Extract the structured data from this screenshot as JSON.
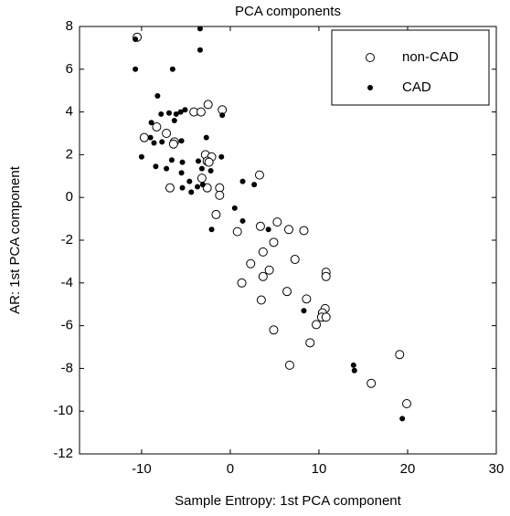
{
  "chart_data": {
    "type": "scatter",
    "title": "PCA components",
    "x_label": "Sample Entropy: 1st PCA component",
    "y_label": "AR: 1st PCA component",
    "xlim": [
      -17,
      30
    ],
    "ylim": [
      -12,
      8
    ],
    "xticks": [
      -10,
      0,
      10,
      20,
      30
    ],
    "yticks": [
      -12,
      -10,
      -8,
      -6,
      -4,
      -2,
      0,
      2,
      4,
      6,
      8
    ],
    "legend_position": "upper-right",
    "series": [
      {
        "name": "non-CAD",
        "color": "#000000",
        "marker": "open-circle",
        "x": [
          -10.5,
          -2.5,
          -0.9,
          -4.1,
          -3.3,
          -8.3,
          -7.2,
          -9.7,
          -6.3,
          -6.4,
          -2.8,
          -2.1,
          -2.6,
          -2.4,
          -3.2,
          3.3,
          -1.2,
          -2.6,
          -6.8,
          -1.2,
          -1.6,
          0.8,
          3.4,
          5.3,
          6.6,
          8.3,
          4.9,
          3.7,
          2.3,
          7.3,
          4.4,
          3.7,
          10.8,
          10.8,
          1.3,
          6.4,
          3.5,
          8.6,
          10.7,
          10.4,
          10.3,
          10.8,
          9.7,
          4.9,
          9.0,
          6.7,
          19.1,
          15.9,
          19.9
        ],
        "values": [
          7.5,
          4.35,
          4.1,
          4.0,
          4.0,
          3.3,
          3.0,
          2.8,
          2.6,
          2.5,
          2.0,
          1.9,
          1.7,
          1.65,
          0.9,
          1.05,
          0.45,
          0.45,
          0.45,
          0.1,
          -0.8,
          -1.6,
          -1.35,
          -1.15,
          -1.5,
          -1.55,
          -2.1,
          -2.55,
          -3.1,
          -2.9,
          -3.4,
          -3.7,
          -3.5,
          -3.7,
          -4.0,
          -4.4,
          -4.8,
          -4.75,
          -5.2,
          -5.4,
          -5.6,
          -5.6,
          -5.95,
          -6.2,
          -6.8,
          -7.85,
          -7.35,
          -8.7,
          -9.65
        ]
      },
      {
        "name": "CAD",
        "color": "#000000",
        "marker": "filled-dot",
        "x": [
          -10.7,
          -3.4,
          -3.4,
          -10.7,
          -6.5,
          -8.2,
          -5.6,
          -5.1,
          -7.8,
          -6.9,
          -6.1,
          -0.9,
          -8.9,
          -6.3,
          -9.0,
          -8.6,
          -7.7,
          -5.5,
          -2.7,
          -10.0,
          -6.6,
          -8.4,
          -5.4,
          -3.6,
          -1.0,
          -2.2,
          -3.2,
          -7.2,
          -5.5,
          -3.1,
          -3.7,
          -5.4,
          -4.4,
          -4.6,
          2.7,
          1.4,
          0.5,
          1.4,
          -2.1,
          4.3,
          8.3,
          13.9,
          14.0,
          19.4
        ],
        "values": [
          7.4,
          7.9,
          6.9,
          6.0,
          6.0,
          4.75,
          4.0,
          4.1,
          3.9,
          3.95,
          3.9,
          3.85,
          3.5,
          3.6,
          2.8,
          2.55,
          2.6,
          2.65,
          2.8,
          1.9,
          1.75,
          1.45,
          1.65,
          1.7,
          1.9,
          1.25,
          1.35,
          1.35,
          1.15,
          0.6,
          0.5,
          0.45,
          0.25,
          0.75,
          0.6,
          0.75,
          -0.5,
          -1.1,
          -1.5,
          -1.5,
          -5.3,
          -7.85,
          -8.1,
          -10.35
        ]
      }
    ]
  }
}
